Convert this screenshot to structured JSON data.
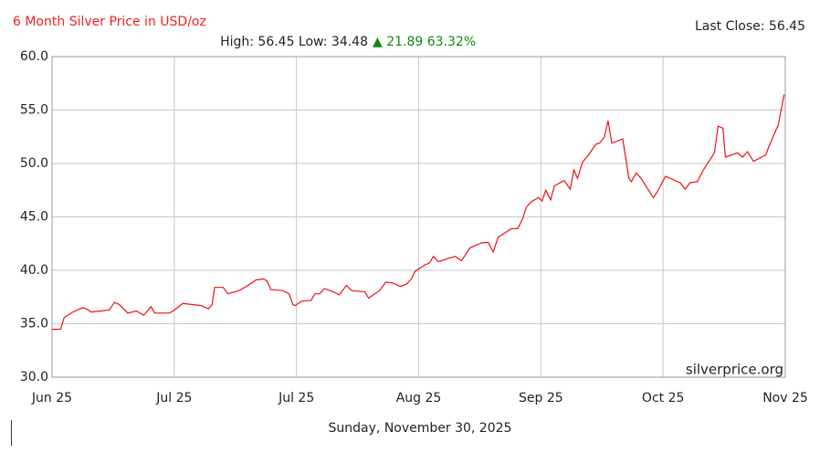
{
  "chart_data": {
    "type": "line",
    "title": "6 Month Silver Price in USD/oz",
    "last_close": "Last Close: 56.45",
    "stats": "High: 56.45 Low: 34.48",
    "change": "▲ 21.89 63.32%",
    "watermark": "silverprice.org",
    "date": "Sunday, November 30, 2025",
    "xlim": [
      0,
      6
    ],
    "xticks": [
      {
        "value": 0,
        "label": "Jun 25"
      },
      {
        "value": 1,
        "label": "Jul 25"
      },
      {
        "value": 2,
        "label": "Jul 25"
      },
      {
        "value": 3,
        "label": "Aug 25"
      },
      {
        "value": 4,
        "label": "Sep 25"
      },
      {
        "value": 5,
        "label": "Oct 25"
      },
      {
        "value": 6,
        "label": "Nov 25"
      }
    ],
    "ylim": [
      30,
      60
    ],
    "yticks": [
      {
        "value": 30,
        "label": "30.0"
      },
      {
        "value": 35,
        "label": "35.0"
      },
      {
        "value": 40,
        "label": "40.0"
      },
      {
        "value": 45,
        "label": "45.0"
      },
      {
        "value": 50,
        "label": "50.0"
      },
      {
        "value": 55,
        "label": "55.0"
      },
      {
        "value": 60,
        "label": "60.0"
      }
    ],
    "grid": true,
    "series": [
      {
        "name": "Silver",
        "color": "#ee1111",
        "x": [
          0,
          0.07,
          0.1,
          0.17,
          0.25,
          0.28,
          0.32,
          0.4,
          0.47,
          0.51,
          0.55,
          0.62,
          0.69,
          0.75,
          0.81,
          0.84,
          0.96,
          0.99,
          1.07,
          1.14,
          1.22,
          1.28,
          1.31,
          1.33,
          1.4,
          1.44,
          1.53,
          1.59,
          1.67,
          1.73,
          1.76,
          1.79,
          1.89,
          1.94,
          1.97,
          1.99,
          2.04,
          2.12,
          2.15,
          2.19,
          2.23,
          2.3,
          2.35,
          2.41,
          2.45,
          2.56,
          2.59,
          2.68,
          2.73,
          2.79,
          2.85,
          2.9,
          2.94,
          2.97,
          3.05,
          3.09,
          3.12,
          3.16,
          3.24,
          3.3,
          3.35,
          3.38,
          3.42,
          3.46,
          3.52,
          3.57,
          3.61,
          3.65,
          3.76,
          3.81,
          3.85,
          3.88,
          3.92,
          3.98,
          4.01,
          4.04,
          4.08,
          4.11,
          4.19,
          4.24,
          4.27,
          4.3,
          4.34,
          4.39,
          4.45,
          4.48,
          4.52,
          4.55,
          4.58,
          4.67,
          4.72,
          4.74,
          4.78,
          4.82,
          4.92,
          4.95,
          5.02,
          5.14,
          5.18,
          5.22,
          5.28,
          5.33,
          5.42,
          5.45,
          5.49,
          5.51,
          5.61,
          5.65,
          5.69,
          5.74,
          5.84,
          5.87,
          5.93,
          5.94,
          5.99
        ],
        "values": [
          34.48,
          34.5,
          35.6,
          36.1,
          36.5,
          36.4,
          36.1,
          36.2,
          36.3,
          37.0,
          36.8,
          36.0,
          36.2,
          35.8,
          36.6,
          36.0,
          36.0,
          36.2,
          36.9,
          36.8,
          36.7,
          36.4,
          36.8,
          38.4,
          38.4,
          37.8,
          38.1,
          38.5,
          39.1,
          39.2,
          39.0,
          38.2,
          38.1,
          37.8,
          36.8,
          36.7,
          37.1,
          37.2,
          37.8,
          37.8,
          38.3,
          38.0,
          37.7,
          38.6,
          38.1,
          38.0,
          37.4,
          38.1,
          38.9,
          38.8,
          38.5,
          38.7,
          39.2,
          39.9,
          40.5,
          40.7,
          41.3,
          40.8,
          41.1,
          41.3,
          40.9,
          41.4,
          42.1,
          42.3,
          42.6,
          42.6,
          41.7,
          43.1,
          43.9,
          43.9,
          44.8,
          45.9,
          46.4,
          46.8,
          46.5,
          47.5,
          46.6,
          47.9,
          48.4,
          47.6,
          49.4,
          48.6,
          50.1,
          50.8,
          51.8,
          51.9,
          52.5,
          54.0,
          51.9,
          52.3,
          48.6,
          48.3,
          49.1,
          48.6,
          46.8,
          47.3,
          48.8,
          48.2,
          47.6,
          48.2,
          48.3,
          49.4,
          51.0,
          53.5,
          53.3,
          50.6,
          51.0,
          50.6,
          51.1,
          50.2,
          50.8,
          51.7,
          53.3,
          53.5,
          56.45
        ]
      }
    ]
  }
}
